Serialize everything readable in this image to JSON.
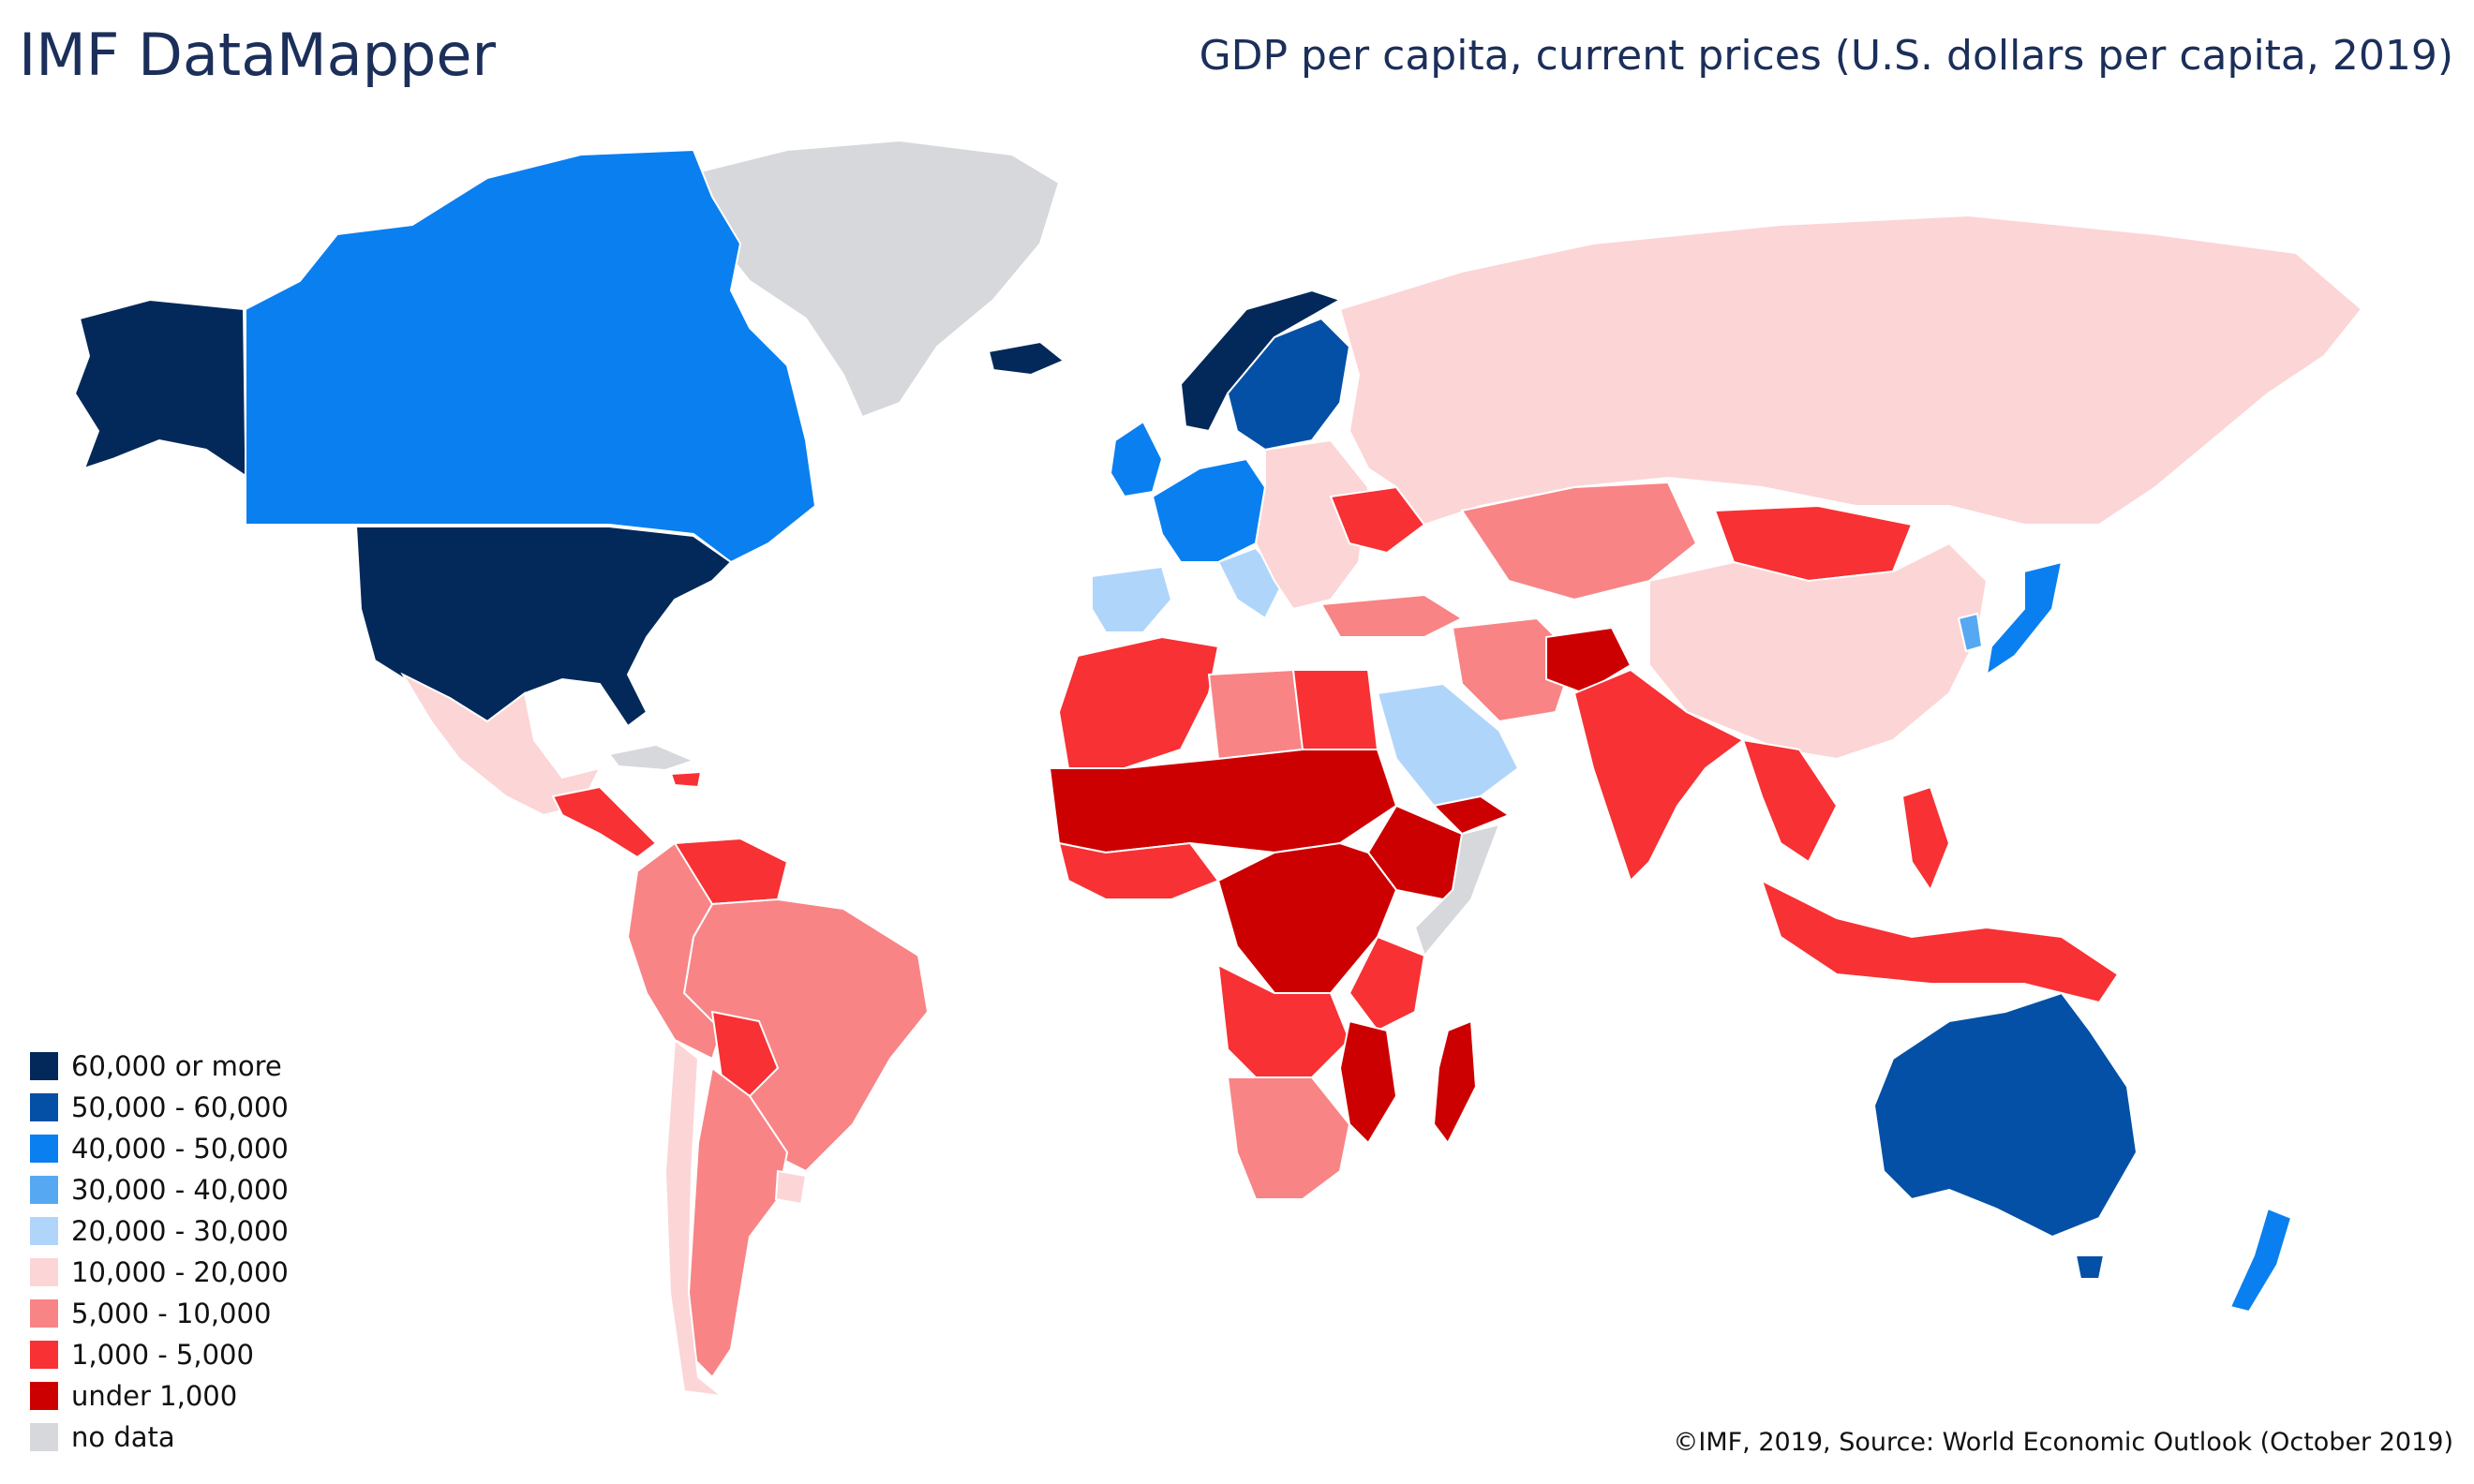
{
  "header": {
    "app_title": "IMF DataMapper",
    "chart_title": "GDP per capita, current prices (U.S. dollars per capita, 2019)"
  },
  "legend": {
    "items": [
      {
        "label": "60,000 or more",
        "color": "#03295a"
      },
      {
        "label": "50,000 - 60,000",
        "color": "#0450a6"
      },
      {
        "label": "40,000 - 50,000",
        "color": "#0a7ff0"
      },
      {
        "label": "30,000 - 40,000",
        "color": "#56a8f2"
      },
      {
        "label": "20,000 - 30,000",
        "color": "#b0d5fb"
      },
      {
        "label": "10,000 - 20,000",
        "color": "#fcd5d6"
      },
      {
        "label": "5,000 - 10,000",
        "color": "#f88486"
      },
      {
        "label": "1,000 - 5,000",
        "color": "#f73134"
      },
      {
        "label": "under 1,000",
        "color": "#cc0000"
      },
      {
        "label": "no data",
        "color": "#d7d8dc"
      }
    ]
  },
  "footer": {
    "source": "©IMF, 2019, Source: World Economic Outlook (October 2019)"
  }
}
